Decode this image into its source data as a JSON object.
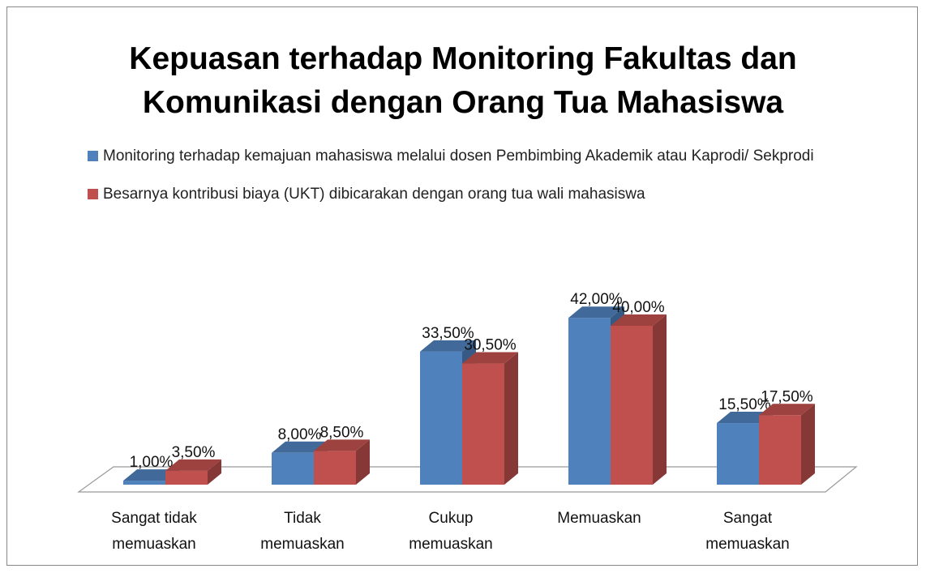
{
  "chart_data": {
    "type": "bar3d",
    "title": "Kepuasan terhadap Monitoring Fakultas dan Komunikasi dengan Orang Tua Mahasiswa",
    "categories": [
      "Sangat tidak memuaskan",
      "Tidak memuaskan",
      "Cukup memuaskan",
      "Memuaskan",
      "Sangat memuaskan"
    ],
    "series": [
      {
        "name": "Monitoring terhadap kemajuan mahasiswa melalui dosen Pembimbing Akademik atau Kaprodi/ Sekprodi",
        "color": "#4f81bd",
        "values": [
          1,
          8,
          33.5,
          42,
          15.5
        ],
        "value_labels": [
          "1,00%",
          "8,00%",
          "33,50%",
          "42,00%",
          "15,50%"
        ]
      },
      {
        "name": "Besarnya kontribusi biaya (UKT) dibicarakan dengan orang tua wali mahasiswa",
        "color": "#c0504d",
        "values": [
          3.5,
          8.5,
          30.5,
          40,
          17.5
        ],
        "value_labels": [
          "3,50%",
          "8,50%",
          "30,50%",
          "40,00%",
          "17,50%"
        ]
      }
    ],
    "legend": "top"
  }
}
